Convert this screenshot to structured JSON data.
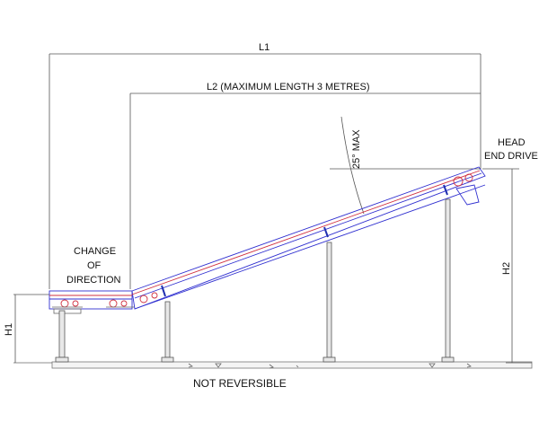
{
  "labels": {
    "l1": "L1",
    "l2": "L2  (MAXIMUM LENGTH 3 METRES)",
    "angle": "25° MAX",
    "head_line1": "HEAD",
    "head_line2": "END DRIVE",
    "change_line1": "CHANGE",
    "change_line2": "OF",
    "change_line3": "DIRECTION",
    "h1": "H1",
    "h2": "H2",
    "footer": "NOT REVERSIBLE"
  },
  "colors": {
    "frame": "#3030d0",
    "belt": "#d03040",
    "dimension": "#555555"
  }
}
